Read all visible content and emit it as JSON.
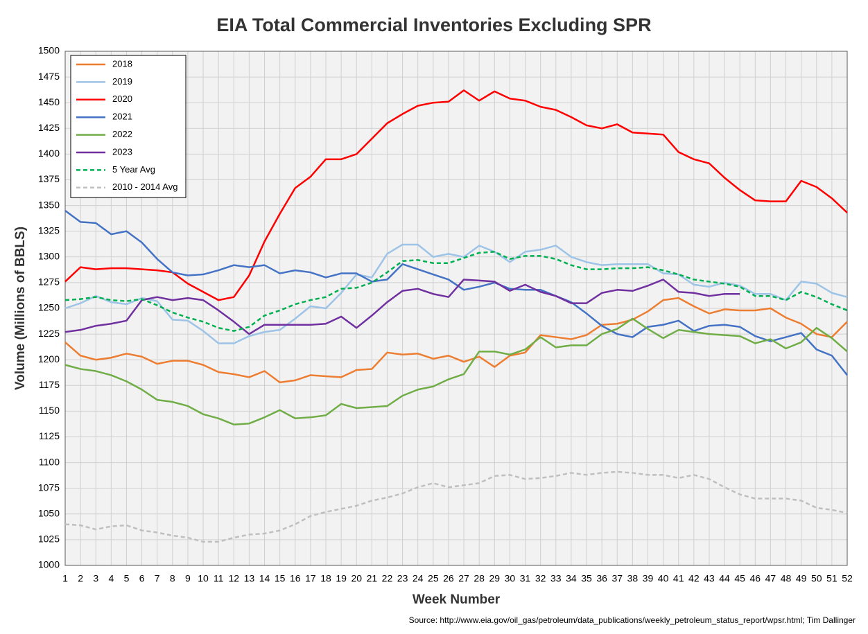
{
  "chart_data": {
    "type": "line",
    "title": "EIA Total Commercial Inventories Excluding SPR",
    "xlabel": "Week Number",
    "ylabel": "Volume (Millions of BBLS)",
    "source": "Source: http://www.eia.gov/oil_gas/petroleum/data_publications/weekly_petroleum_status_report/wpsr.html; Tim Dallinger",
    "x": [
      1,
      2,
      3,
      4,
      5,
      6,
      7,
      8,
      9,
      10,
      11,
      12,
      13,
      14,
      15,
      16,
      17,
      18,
      19,
      20,
      21,
      22,
      23,
      24,
      25,
      26,
      27,
      28,
      29,
      30,
      31,
      32,
      33,
      34,
      35,
      36,
      37,
      38,
      39,
      40,
      41,
      42,
      43,
      44,
      45,
      46,
      47,
      48,
      49,
      50,
      51,
      52
    ],
    "xlim": [
      1,
      52
    ],
    "xticks": [
      1,
      2,
      3,
      4,
      5,
      6,
      7,
      8,
      9,
      10,
      11,
      12,
      13,
      14,
      15,
      16,
      17,
      18,
      19,
      20,
      21,
      22,
      23,
      24,
      25,
      26,
      27,
      28,
      29,
      30,
      31,
      32,
      33,
      34,
      35,
      36,
      37,
      38,
      39,
      40,
      41,
      42,
      43,
      44,
      45,
      46,
      47,
      48,
      49,
      50,
      51,
      52
    ],
    "ylim": [
      1000,
      1500
    ],
    "yticks": [
      1000,
      1025,
      1050,
      1075,
      1100,
      1125,
      1150,
      1175,
      1200,
      1225,
      1250,
      1275,
      1300,
      1325,
      1350,
      1375,
      1400,
      1425,
      1450,
      1475,
      1500
    ],
    "grid": true,
    "legend": "upper left",
    "series": [
      {
        "name": "2018",
        "color": "#ed7d31",
        "dashed": false,
        "values": [
          1217,
          1204,
          1200,
          1202,
          1206,
          1203,
          1196,
          1199,
          1199,
          1195,
          1188,
          1186,
          1183,
          1189,
          1178,
          1180,
          1185,
          1184,
          1183,
          1190,
          1191,
          1207,
          1205,
          1206,
          1201,
          1204,
          1198,
          1203,
          1193,
          1204,
          1207,
          1224,
          1222,
          1220,
          1224,
          1234,
          1235,
          1239,
          1247,
          1258,
          1260,
          1252,
          1245,
          1249,
          1248,
          1248,
          1250,
          1241,
          1235,
          1225,
          1222,
          1237
        ]
      },
      {
        "name": "2019",
        "color": "#9dc3e6",
        "dashed": false,
        "values": [
          1250,
          1255,
          1262,
          1256,
          1254,
          1260,
          1257,
          1239,
          1238,
          1228,
          1216,
          1216,
          1223,
          1227,
          1229,
          1240,
          1252,
          1250,
          1265,
          1283,
          1280,
          1303,
          1312,
          1312,
          1300,
          1303,
          1300,
          1311,
          1305,
          1295,
          1305,
          1307,
          1311,
          1300,
          1295,
          1292,
          1293,
          1293,
          1293,
          1284,
          1283,
          1273,
          1271,
          1275,
          1272,
          1264,
          1264,
          1258,
          1276,
          1274,
          1265,
          1261
        ]
      },
      {
        "name": "2020",
        "color": "#ff0000",
        "dashed": false,
        "values": [
          1276,
          1290,
          1288,
          1289,
          1289,
          1288,
          1287,
          1285,
          1274,
          1266,
          1258,
          1261,
          1282,
          1315,
          1342,
          1367,
          1378,
          1395,
          1395,
          1400,
          1415,
          1430,
          1439,
          1447,
          1450,
          1451,
          1462,
          1452,
          1461,
          1454,
          1452,
          1446,
          1443,
          1436,
          1428,
          1425,
          1429,
          1421,
          1420,
          1419,
          1402,
          1395,
          1391,
          1377,
          1365,
          1355,
          1354,
          1354,
          1374,
          1368,
          1357,
          1343
        ]
      },
      {
        "name": "2021",
        "color": "#4472c4",
        "dashed": false,
        "values": [
          1345,
          1334,
          1333,
          1322,
          1325,
          1314,
          1298,
          1285,
          1282,
          1283,
          1287,
          1292,
          1290,
          1292,
          1284,
          1287,
          1285,
          1280,
          1284,
          1284,
          1276,
          1278,
          1293,
          1288,
          1283,
          1278,
          1268,
          1271,
          1275,
          1269,
          1268,
          1268,
          1262,
          1256,
          1245,
          1233,
          1225,
          1222,
          1232,
          1234,
          1238,
          1228,
          1233,
          1234,
          1232,
          1223,
          1218,
          1222,
          1226,
          1210,
          1204,
          1185
        ]
      },
      {
        "name": "2022",
        "color": "#70ad47",
        "dashed": false,
        "values": [
          1195,
          1191,
          1189,
          1185,
          1179,
          1171,
          1161,
          1159,
          1155,
          1147,
          1143,
          1137,
          1138,
          1144,
          1151,
          1143,
          1144,
          1146,
          1157,
          1153,
          1154,
          1155,
          1165,
          1171,
          1174,
          1181,
          1186,
          1208,
          1208,
          1205,
          1210,
          1222,
          1212,
          1214,
          1214,
          1225,
          1230,
          1240,
          1230,
          1221,
          1229,
          1227,
          1225,
          1224,
          1223,
          1216,
          1220,
          1211,
          1217,
          1231,
          1221,
          1208
        ]
      },
      {
        "name": "2023",
        "color": "#7030a0",
        "dashed": false,
        "values": [
          1227,
          1229,
          1233,
          1235,
          1238,
          1258,
          1261,
          1258,
          1260,
          1258,
          1248,
          1237,
          1225,
          1234,
          1234,
          1234,
          1234,
          1235,
          1242,
          1231,
          1243,
          1256,
          1267,
          1269,
          1264,
          1261,
          1278,
          1277,
          1276,
          1267,
          1273,
          1266,
          1262,
          1255,
          1255,
          1265,
          1268,
          1267,
          1272,
          1278,
          1266,
          1265,
          1262,
          1264,
          1264,
          null,
          null,
          null,
          null,
          null,
          null,
          null
        ]
      },
      {
        "name": "5 Year Avg",
        "color": "#00b050",
        "dashed": true,
        "values": [
          1258,
          1259,
          1261,
          1258,
          1257,
          1259,
          1253,
          1246,
          1241,
          1237,
          1231,
          1228,
          1232,
          1243,
          1248,
          1254,
          1258,
          1261,
          1269,
          1270,
          1275,
          1285,
          1296,
          1297,
          1294,
          1294,
          1299,
          1304,
          1305,
          1298,
          1301,
          1301,
          1298,
          1292,
          1288,
          1288,
          1289,
          1289,
          1290,
          1287,
          1283,
          1278,
          1276,
          1274,
          1271,
          1262,
          1262,
          1258,
          1266,
          1261,
          1254,
          1248
        ]
      },
      {
        "name": "2010 - 2014 Avg",
        "color": "#bfbfbf",
        "dashed": true,
        "values": [
          1040,
          1039,
          1035,
          1038,
          1039,
          1034,
          1032,
          1029,
          1027,
          1023,
          1023,
          1027,
          1030,
          1031,
          1034,
          1040,
          1048,
          1052,
          1055,
          1058,
          1063,
          1066,
          1070,
          1076,
          1080,
          1076,
          1078,
          1080,
          1087,
          1088,
          1084,
          1085,
          1087,
          1090,
          1088,
          1090,
          1091,
          1090,
          1088,
          1088,
          1085,
          1088,
          1084,
          1076,
          1069,
          1065,
          1065,
          1065,
          1063,
          1056,
          1054,
          1051
        ]
      }
    ]
  }
}
